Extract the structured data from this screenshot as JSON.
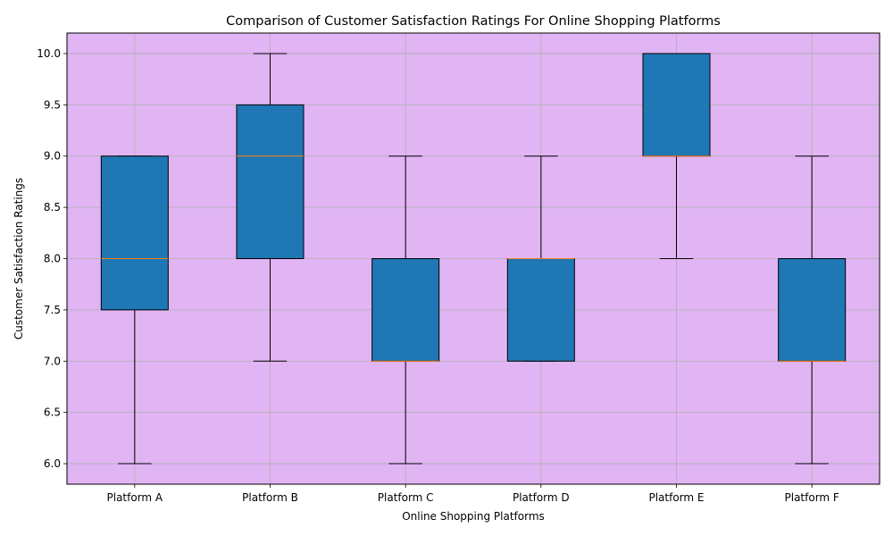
{
  "chart_data": {
    "type": "box",
    "title": "Comparison of Customer Satisfaction Ratings For Online Shopping Platforms",
    "xlabel": "Online Shopping Platforms",
    "ylabel": "Customer Satisfaction Ratings",
    "ylim": [
      5.8,
      10.2
    ],
    "yticks": [
      "6.0",
      "6.5",
      "7.0",
      "7.5",
      "8.0",
      "8.5",
      "9.0",
      "9.5",
      "10.0"
    ],
    "grid": true,
    "background_color": "#e1b4f3",
    "box_color": "#1f77b4",
    "median_color": "#ff7f0e",
    "categories": [
      "Platform A",
      "Platform B",
      "Platform C",
      "Platform D",
      "Platform E",
      "Platform F"
    ],
    "boxes": [
      {
        "whislo": 6,
        "q1": 7.5,
        "med": 8,
        "q3": 9,
        "whishi": 9
      },
      {
        "whislo": 7,
        "q1": 8,
        "med": 9,
        "q3": 9.5,
        "whishi": 10
      },
      {
        "whislo": 6,
        "q1": 7,
        "med": 7,
        "q3": 8,
        "whishi": 9
      },
      {
        "whislo": 7,
        "q1": 7,
        "med": 8,
        "q3": 8,
        "whishi": 9
      },
      {
        "whislo": 8,
        "q1": 9,
        "med": 9,
        "q3": 10,
        "whishi": 10
      },
      {
        "whislo": 6,
        "q1": 7,
        "med": 7,
        "q3": 8,
        "whishi": 9
      }
    ]
  }
}
